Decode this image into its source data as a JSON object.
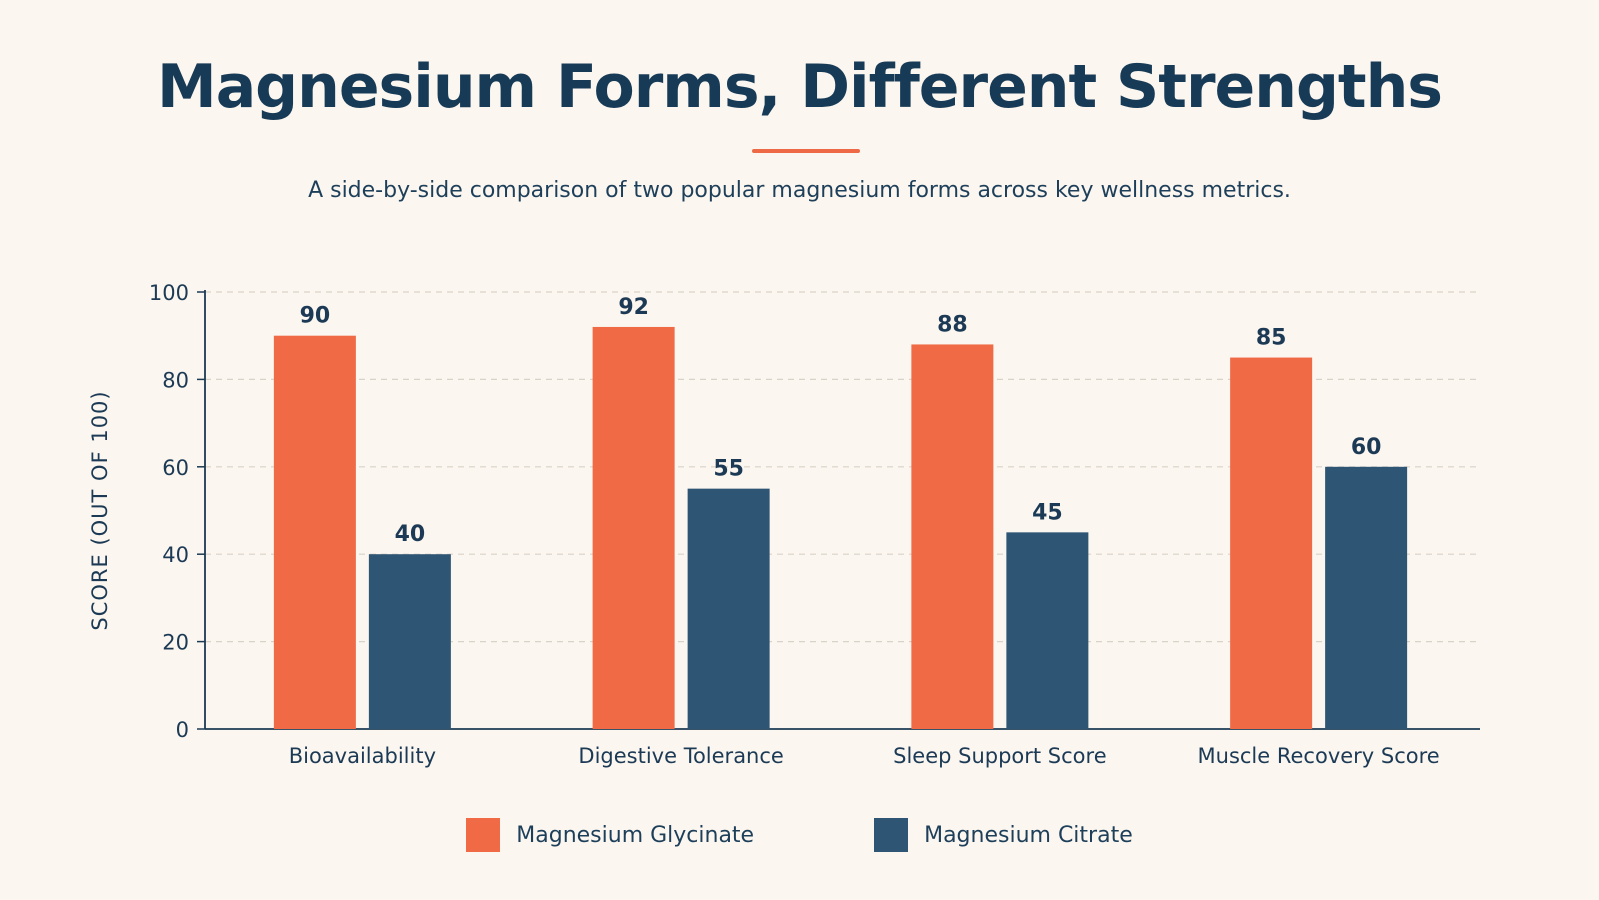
{
  "header": {
    "title": "Magnesium Forms, Different Strengths",
    "subtitle": "A side-by-side comparison of two popular magnesium forms across key wellness metrics."
  },
  "colors": {
    "glycinate": "#f06a46",
    "citrate": "#2f5574",
    "axis": "#1c3a55",
    "grid": "#d9d2c8"
  },
  "chart_data": {
    "type": "bar",
    "title": "Magnesium Forms, Different Strengths",
    "subtitle": "A side-by-side comparison of two popular magnesium forms across key wellness metrics.",
    "xlabel": "",
    "ylabel": "SCORE (OUT OF 100)",
    "ylim": [
      0,
      100
    ],
    "yticks": [
      0,
      20,
      40,
      60,
      80,
      100
    ],
    "grid": true,
    "legend_position": "bottom",
    "categories": [
      "Bioavailability",
      "Digestive Tolerance",
      "Sleep Support Score",
      "Muscle Recovery Score"
    ],
    "series": [
      {
        "name": "Magnesium Glycinate",
        "values": [
          90,
          92,
          88,
          85
        ],
        "color": "#f06a46"
      },
      {
        "name": "Magnesium Citrate",
        "values": [
          40,
          55,
          45,
          60
        ],
        "color": "#2f5574"
      }
    ]
  }
}
